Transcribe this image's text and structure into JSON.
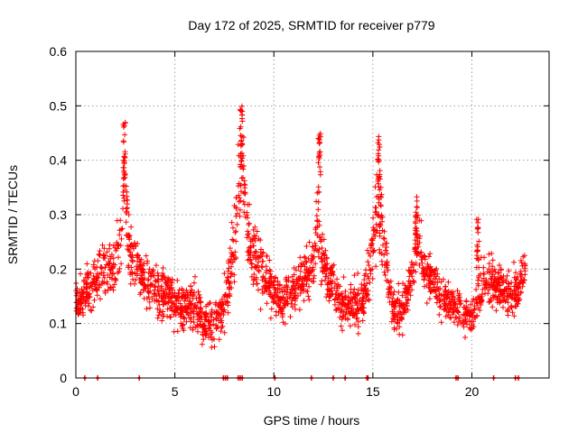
{
  "chart_data": {
    "type": "scatter",
    "title": "Day 172 of 2025, SRMTID for receiver p779",
    "xlabel": "GPS time / hours",
    "ylabel": "SRMTID / TECUs",
    "xlim": [
      0,
      23.9
    ],
    "ylim": [
      0,
      0.6
    ],
    "xticks": [
      0,
      5,
      10,
      15,
      20
    ],
    "yticks": [
      0,
      0.1,
      0.2,
      0.3,
      0.4,
      0.5,
      0.6
    ],
    "xtick_labels": [
      "0",
      "5",
      "10",
      "15",
      "20"
    ],
    "ytick_labels": [
      "0",
      "0.1",
      "0.2",
      "0.3",
      "0.4",
      "0.5",
      "0.6"
    ],
    "grid": true,
    "marker": "plus",
    "color": "#ff0000",
    "series": [
      {
        "name": "SRMTID",
        "profile": {
          "hours": [
            0.0,
            0.5,
            1.0,
            1.5,
            2.0,
            2.3,
            2.45,
            2.6,
            2.8,
            3.2,
            3.5,
            4.0,
            4.5,
            5.0,
            5.5,
            6.0,
            6.5,
            7.0,
            7.5,
            7.8,
            8.0,
            8.2,
            8.4,
            8.6,
            8.8,
            9.0,
            9.5,
            10.0,
            10.5,
            11.0,
            11.5,
            12.0,
            12.2,
            12.4,
            12.6,
            13.0,
            13.5,
            14.0,
            14.5,
            14.8,
            15.0,
            15.3,
            15.6,
            16.0,
            16.5,
            17.0,
            17.3,
            17.6,
            18.0,
            18.5,
            19.0,
            19.5,
            20.0,
            20.3,
            20.6,
            21.0,
            21.5,
            22.0,
            22.3,
            22.5,
            22.7
          ],
          "center": [
            0.14,
            0.16,
            0.18,
            0.2,
            0.2,
            0.26,
            0.38,
            0.28,
            0.22,
            0.2,
            0.18,
            0.16,
            0.16,
            0.14,
            0.13,
            0.13,
            0.1,
            0.1,
            0.13,
            0.18,
            0.25,
            0.36,
            0.42,
            0.3,
            0.24,
            0.22,
            0.2,
            0.15,
            0.14,
            0.16,
            0.18,
            0.2,
            0.3,
            0.22,
            0.2,
            0.17,
            0.13,
            0.14,
            0.14,
            0.2,
            0.25,
            0.33,
            0.22,
            0.13,
            0.12,
            0.2,
            0.26,
            0.2,
            0.18,
            0.15,
            0.13,
            0.12,
            0.11,
            0.15,
            0.17,
            0.18,
            0.16,
            0.15,
            0.16,
            0.18,
            0.2
          ],
          "spread": [
            0.04,
            0.05,
            0.06,
            0.06,
            0.06,
            0.09,
            0.11,
            0.08,
            0.06,
            0.06,
            0.06,
            0.06,
            0.06,
            0.05,
            0.05,
            0.05,
            0.05,
            0.05,
            0.06,
            0.08,
            0.1,
            0.12,
            0.1,
            0.08,
            0.07,
            0.07,
            0.06,
            0.05,
            0.05,
            0.05,
            0.05,
            0.06,
            0.1,
            0.07,
            0.06,
            0.05,
            0.05,
            0.05,
            0.05,
            0.07,
            0.09,
            0.1,
            0.07,
            0.05,
            0.05,
            0.06,
            0.07,
            0.06,
            0.05,
            0.05,
            0.04,
            0.04,
            0.04,
            0.05,
            0.05,
            0.05,
            0.05,
            0.05,
            0.05,
            0.05,
            0.05
          ]
        },
        "point_count": 2200,
        "peaks": [
          {
            "x": 2.45,
            "y": 0.47
          },
          {
            "x": 8.35,
            "y": 0.5
          },
          {
            "x": 12.3,
            "y": 0.46
          },
          {
            "x": 15.3,
            "y": 0.45
          },
          {
            "x": 17.2,
            "y": 0.34
          },
          {
            "x": 20.3,
            "y": 0.3
          }
        ],
        "zero_values_x": [
          0.45,
          1.1,
          3.2,
          7.45,
          7.55,
          7.65,
          8.2,
          8.3,
          8.4,
          10.05,
          11.9,
          13.0,
          13.6,
          14.7,
          14.75,
          19.2,
          19.3,
          21.1,
          22.2,
          22.35
        ]
      }
    ]
  }
}
